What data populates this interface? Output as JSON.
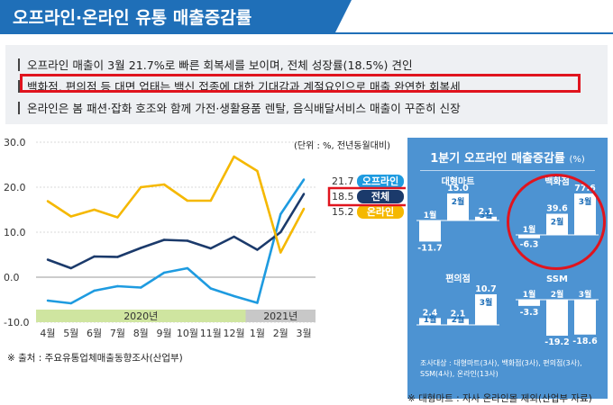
{
  "title": "오프라인·온라인 유통 매출증감률",
  "summary": [
    "오프라인 매출이 3월 21.7%로 빠른 회복세를 보이며, 전체 성장률(18.5%) 견인",
    "백화점, 편의점 등 대면 업태는 백신 접종에 대한 기대감과 계절요인으로 매출 완연한 회복세",
    "온라인은 봄 패션·잡화 호조와 함께 가전·생활용품 렌탈, 음식배달서비스 매출이 꾸준히 신장"
  ],
  "unit_label": "(단위 : %, 전년동월대비)",
  "source_left": "※ 출처 : 주요유통업체매출동향조사(산업부)",
  "source_right": "※ 대형마트 : 자사 온라인몰 제외(산업부 자료)",
  "year_bands": [
    "2020년",
    "2021년"
  ],
  "colors": {
    "offline": "#1e9be0",
    "total": "#1b3a6b",
    "online": "#f5b800",
    "panel": "#4d93d2",
    "highlight": "#e0141e"
  },
  "chart_data": [
    {
      "type": "line",
      "categories": [
        "4월",
        "5월",
        "6월",
        "7월",
        "8월",
        "9월",
        "10월",
        "11월",
        "12월",
        "1월",
        "2월",
        "3월"
      ],
      "ylim": [
        -10,
        30
      ],
      "yticks": [
        "30.0",
        "20.0",
        "10.0",
        "0.0",
        "-10.0"
      ],
      "grid": true,
      "series": [
        {
          "name": "오프라인",
          "values": [
            -5.2,
            -5.8,
            -3.0,
            -2.0,
            -2.3,
            1.0,
            2.0,
            -2.5,
            -4.2,
            -5.7,
            14.0,
            21.7
          ],
          "end_label": "21.7"
        },
        {
          "name": "전체",
          "values": [
            3.9,
            2.0,
            4.6,
            4.5,
            6.5,
            8.3,
            8.1,
            6.4,
            9.0,
            6.1,
            10.0,
            18.5
          ],
          "end_label": "18.5"
        },
        {
          "name": "온라인",
          "values": [
            16.9,
            13.5,
            15.0,
            13.3,
            20.0,
            20.6,
            17.0,
            17.0,
            26.8,
            23.6,
            5.5,
            15.2
          ],
          "end_label": "15.2"
        }
      ]
    },
    {
      "type": "bar",
      "title": "1분기 오프라인 매출증감률",
      "title_unit": "(%)",
      "panels": [
        {
          "name": "대형마트",
          "categories": [
            "1월",
            "2월",
            "3월"
          ],
          "values": [
            -11.7,
            15.0,
            2.1
          ],
          "labels": [
            "-11.7",
            "15.0",
            "2.1"
          ]
        },
        {
          "name": "백화점",
          "categories": [
            "1월",
            "2월",
            "3월"
          ],
          "values": [
            -6.3,
            39.6,
            77.6
          ],
          "labels": [
            "-6.3",
            "39.6",
            "77.6"
          ]
        },
        {
          "name": "편의점",
          "categories": [
            "1월",
            "2월",
            "3월"
          ],
          "values": [
            2.4,
            2.1,
            10.7
          ],
          "labels": [
            "2.4",
            "2.1",
            "10.7"
          ]
        },
        {
          "name": "SSM",
          "categories": [
            "1월",
            "2월",
            "3월"
          ],
          "values": [
            -3.3,
            -19.2,
            -18.6
          ],
          "labels": [
            "-3.3",
            "-19.2",
            "-18.6"
          ]
        }
      ],
      "note": "조사대상 : 대형마트(3사), 백화점(3사), 편의점(3사), SSM(4사), 온라인(13사)"
    }
  ]
}
